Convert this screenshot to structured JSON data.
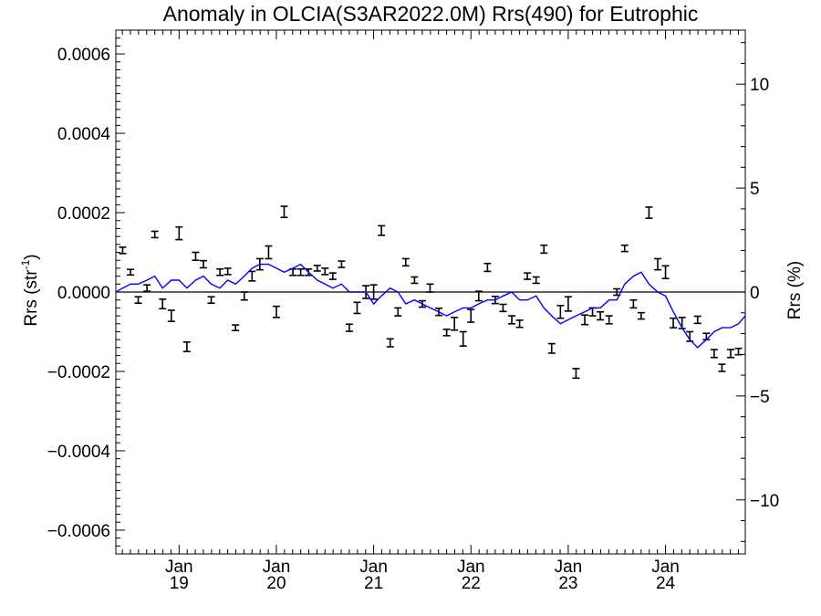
{
  "chart_data": {
    "type": "line",
    "title": "Anomaly in OLCIA(S3AR2022.0M) Rrs(490) for Eutrophic",
    "ylabel_left": "Rrs (str",
    "ylabel_left_sup": "-1",
    "ylabel_left_close": ")",
    "ylabel_right": "Rrs (%)",
    "y_left_range": [
      -0.00066,
      0.00066
    ],
    "y_right_range": [
      -12.6,
      12.6
    ],
    "x_range": [
      2018.35,
      2024.82
    ],
    "y_left_ticks": [
      {
        "value": 0.0006,
        "label": "0.0006"
      },
      {
        "value": 0.0004,
        "label": "0.0004"
      },
      {
        "value": 0.0002,
        "label": "0.0002"
      },
      {
        "value": 0.0,
        "label": "0.0000"
      },
      {
        "value": -0.0002,
        "label": "−0.0002"
      },
      {
        "value": -0.0004,
        "label": "−0.0004"
      },
      {
        "value": -0.0006,
        "label": "−0.0006"
      }
    ],
    "y_right_ticks": [
      {
        "value": 10,
        "label": "10"
      },
      {
        "value": 5,
        "label": "5"
      },
      {
        "value": 0,
        "label": "0"
      },
      {
        "value": -5,
        "label": "−5"
      },
      {
        "value": -10,
        "label": "−10"
      }
    ],
    "x_ticks": [
      {
        "value": 2019.0,
        "month": "Jan",
        "year": "19"
      },
      {
        "value": 2020.0,
        "month": "Jan",
        "year": "20"
      },
      {
        "value": 2021.0,
        "month": "Jan",
        "year": "21"
      },
      {
        "value": 2022.0,
        "month": "Jan",
        "year": "22"
      },
      {
        "value": 2023.0,
        "month": "Jan",
        "year": "23"
      },
      {
        "value": 2024.0,
        "month": "Jan",
        "year": "24"
      }
    ],
    "monthly_anomaly": {
      "x": [
        2018.42,
        2018.5,
        2018.58,
        2018.67,
        2018.75,
        2018.83,
        2018.92,
        2019.0,
        2019.08,
        2019.17,
        2019.25,
        2019.33,
        2019.42,
        2019.5,
        2019.58,
        2019.67,
        2019.75,
        2019.83,
        2019.92,
        2020.0,
        2020.08,
        2020.17,
        2020.25,
        2020.33,
        2020.42,
        2020.5,
        2020.58,
        2020.67,
        2020.75,
        2020.83,
        2020.92,
        2021.0,
        2021.08,
        2021.17,
        2021.25,
        2021.33,
        2021.42,
        2021.5,
        2021.58,
        2021.67,
        2021.75,
        2021.83,
        2021.92,
        2022.0,
        2022.08,
        2022.17,
        2022.25,
        2022.33,
        2022.42,
        2022.5,
        2022.58,
        2022.67,
        2022.75,
        2022.83,
        2022.92,
        2023.0,
        2023.08,
        2023.17,
        2023.25,
        2023.33,
        2023.42,
        2023.5,
        2023.58,
        2023.67,
        2023.75,
        2023.83,
        2023.92,
        2024.0,
        2024.08,
        2024.17,
        2024.25,
        2024.33,
        2024.42,
        2024.5,
        2024.58,
        2024.67,
        2024.75
      ],
      "y": [
        0.000105,
        5e-05,
        -2e-05,
        1e-05,
        0.000145,
        -3e-05,
        -6e-05,
        0.000148,
        -0.000138,
        9e-05,
        7e-05,
        -2e-05,
        5e-05,
        5.2e-05,
        -9e-05,
        -1e-05,
        4e-05,
        7e-05,
        0.0001,
        -5e-05,
        0.000202,
        5e-05,
        5e-05,
        5e-05,
        6e-05,
        5.2e-05,
        4e-05,
        7e-05,
        -9e-05,
        -4e-05,
        0.0,
        0.0,
        0.000155,
        -0.000128,
        -5e-05,
        7.5e-05,
        3e-05,
        -3e-05,
        1e-05,
        -5e-05,
        -0.000102,
        -8e-05,
        -0.000118,
        -6e-05,
        -1e-05,
        6.2e-05,
        -2e-05,
        -4e-05,
        -7e-05,
        -8e-05,
        4e-05,
        3e-05,
        0.000108,
        -0.000142,
        -5e-05,
        -3e-05,
        -0.000205,
        -7e-05,
        -5e-05,
        -6e-05,
        -7e-05,
        0.0,
        0.00011,
        -3e-05,
        -6e-05,
        0.0002,
        7e-05,
        5e-05,
        -7.8e-05,
        -7.8e-05,
        -0.000112,
        -7e-05,
        -0.000112,
        -0.000155,
        -0.000191,
        -0.000155,
        -0.00015
      ],
      "err": [
        8e-06,
        7e-06,
        8e-06,
        8e-06,
        8e-06,
        1.2e-05,
        1.4e-05,
        1.6e-05,
        1.2e-05,
        1e-05,
        9e-06,
        8e-06,
        8e-06,
        8e-06,
        7e-06,
        1e-05,
        1.2e-05,
        1.4e-05,
        1.6e-05,
        1.4e-05,
        1.4e-05,
        8e-06,
        8e-06,
        8e-06,
        7e-06,
        8e-06,
        8e-06,
        8e-06,
        9e-06,
        1.4e-05,
        1.6e-05,
        1.8e-05,
        1.2e-05,
        1e-05,
        1e-05,
        9e-06,
        8e-06,
        8e-06,
        1e-05,
        9e-06,
        8e-06,
        1.6e-05,
        1.8e-05,
        1.6e-05,
        1.2e-05,
        1e-05,
        9e-06,
        9e-06,
        1e-05,
        9e-06,
        8e-06,
        8e-06,
        1e-05,
        1.2e-05,
        1.6e-05,
        1.8e-05,
        1.2e-05,
        1.2e-05,
        1e-05,
        1e-05,
        1e-05,
        8e-06,
        8e-06,
        1e-05,
        8e-06,
        1.4e-05,
        1.4e-05,
        1.6e-05,
        1.2e-05,
        1.4e-05,
        1.2e-05,
        9e-06,
        8e-06,
        1e-05,
        9e-06,
        1e-05,
        8e-06
      ]
    },
    "running_mean": {
      "x": [
        2018.35,
        2018.42,
        2018.5,
        2018.58,
        2018.67,
        2018.75,
        2018.83,
        2018.92,
        2019.0,
        2019.08,
        2019.17,
        2019.25,
        2019.33,
        2019.42,
        2019.5,
        2019.58,
        2019.67,
        2019.75,
        2019.83,
        2019.92,
        2020.0,
        2020.08,
        2020.17,
        2020.25,
        2020.33,
        2020.42,
        2020.5,
        2020.58,
        2020.67,
        2020.75,
        2020.83,
        2020.92,
        2021.0,
        2021.08,
        2021.17,
        2021.25,
        2021.33,
        2021.42,
        2021.5,
        2021.58,
        2021.67,
        2021.75,
        2021.83,
        2021.92,
        2022.0,
        2022.08,
        2022.17,
        2022.25,
        2022.33,
        2022.42,
        2022.5,
        2022.58,
        2022.67,
        2022.75,
        2022.83,
        2022.92,
        2023.0,
        2023.08,
        2023.17,
        2023.25,
        2023.33,
        2023.42,
        2023.5,
        2023.58,
        2023.67,
        2023.75,
        2023.83,
        2023.92,
        2024.0,
        2024.08,
        2024.17,
        2024.25,
        2024.33,
        2024.42,
        2024.5,
        2024.58,
        2024.67,
        2024.75,
        2024.82
      ],
      "y": [
        0.0,
        1e-05,
        2e-05,
        2e-05,
        3e-05,
        4e-05,
        1e-05,
        3e-05,
        3e-05,
        1e-05,
        3e-05,
        4e-05,
        2e-05,
        1e-05,
        3e-05,
        2e-05,
        4e-05,
        6e-05,
        7e-05,
        7e-05,
        6e-05,
        5e-05,
        6e-05,
        7e-05,
        5e-05,
        3e-05,
        2e-05,
        1e-05,
        2e-05,
        0.0,
        0.0,
        0.0,
        -3e-05,
        -1e-05,
        1e-05,
        0.0,
        -3e-05,
        -2e-05,
        -3e-05,
        -4e-05,
        -5e-05,
        -6e-05,
        -5e-05,
        -4e-05,
        -4e-05,
        -3e-05,
        -2e-05,
        -2e-05,
        -1e-05,
        0.0,
        -2e-05,
        -2e-05,
        -1e-05,
        -4e-05,
        -6e-05,
        -8e-05,
        -7e-05,
        -6e-05,
        -5e-05,
        -4e-05,
        -4e-05,
        -2e-05,
        -2e-05,
        2e-05,
        4e-05,
        5e-05,
        2e-05,
        0.0,
        -1e-05,
        -5e-05,
        -9e-05,
        -0.00012,
        -0.00014,
        -0.00012,
        -0.0001,
        -9e-05,
        -9e-05,
        -8e-05,
        -6e-05
      ]
    },
    "colors": {
      "running_mean": "#0000ff",
      "points": "#000000",
      "zero_line": "#000000"
    },
    "grid": false
  }
}
